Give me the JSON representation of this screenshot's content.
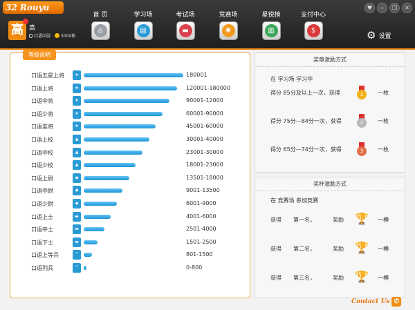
{
  "app": {
    "logo_text": "Rouyu",
    "logo_badge": "32"
  },
  "user": {
    "avatar_char": "高",
    "name": "高",
    "rank": "口语中尉",
    "coins": "3000枚"
  },
  "nav": [
    {
      "label": "首  页",
      "icon": "home-icon",
      "glyph": "⌂",
      "color": "#9aa0a6"
    },
    {
      "label": "学习场",
      "icon": "study-icon",
      "glyph": "▤",
      "color": "#2b9bd8"
    },
    {
      "label": "考试场",
      "icon": "exam-icon",
      "glyph": "▬",
      "color": "#d9414d"
    },
    {
      "label": "竞赛场",
      "icon": "contest-icon",
      "glyph": "✺",
      "color": "#f29a1e"
    },
    {
      "label": "星锐榜",
      "icon": "leaderboard-icon",
      "glyph": "▥",
      "color": "#3aa65a"
    },
    {
      "label": "支付中心",
      "icon": "payment-icon",
      "glyph": "$",
      "color": "#d93a3a"
    }
  ],
  "window": {
    "buttons": [
      "♥",
      "—",
      "❐",
      "✕"
    ]
  },
  "settings_label": "设置",
  "levels": {
    "title": "等级说明",
    "rows": [
      {
        "name": "口语五星上将",
        "range": "180001",
        "fill": 1.0
      },
      {
        "name": "口语上将",
        "range": "120001-180000",
        "fill": 0.94
      },
      {
        "name": "口语中将",
        "range": "90001-12000",
        "fill": 0.86
      },
      {
        "name": "口语少将",
        "range": "60001-90000",
        "fill": 0.79
      },
      {
        "name": "口语准将",
        "range": "45001-60000",
        "fill": 0.72
      },
      {
        "name": "口语上校",
        "range": "30001-40000",
        "fill": 0.66
      },
      {
        "name": "口语中校",
        "range": "23001-30000",
        "fill": 0.59
      },
      {
        "name": "口语少校",
        "range": "18001-23000",
        "fill": 0.52
      },
      {
        "name": "口语上尉",
        "range": "13501-18000",
        "fill": 0.46
      },
      {
        "name": "口语中尉",
        "range": "9001-13500",
        "fill": 0.39
      },
      {
        "name": "口语少尉",
        "range": "6001-9000",
        "fill": 0.33
      },
      {
        "name": "口语上士",
        "range": "4001-6000",
        "fill": 0.27
      },
      {
        "name": "口语中士",
        "range": "2501-4000",
        "fill": 0.21
      },
      {
        "name": "口语下士",
        "range": "1501-2500",
        "fill": 0.14
      },
      {
        "name": "口语上等兵",
        "range": "801-1500",
        "fill": 0.08
      },
      {
        "name": "口语列兵",
        "range": "0-800",
        "fill": 0.03
      }
    ]
  },
  "medal_rewards": {
    "title": "奖章激励方式",
    "intro": "在 学习场 学习中",
    "rows": [
      {
        "text": "得分 85分及以上一次，获得",
        "medal": "1",
        "color": "#f2b21a",
        "amount": "一枚"
      },
      {
        "text": "得分 75分—84分一次，获得",
        "medal": "2",
        "color": "#b8b8b8",
        "amount": "一枚"
      },
      {
        "text": "得分 65分—74分一次，获得",
        "medal": "3",
        "color": "#e0704a",
        "amount": "一枚"
      }
    ]
  },
  "cup_rewards": {
    "title": "奖杯激励方式",
    "intro": "在 竞赛场 参加竞赛",
    "rows": [
      {
        "get": "获得",
        "place": "第一名，",
        "award": "奖励",
        "color": "#f2b21a",
        "amount": "一樽"
      },
      {
        "get": "获得",
        "place": "第二名，",
        "award": "奖励",
        "color": "#c8c8c8",
        "amount": "一樽"
      },
      {
        "get": "获得",
        "place": "第三名，",
        "award": "奖励",
        "color": "#e0704a",
        "amount": "一樽"
      }
    ]
  },
  "contact_label": "Contact Us"
}
